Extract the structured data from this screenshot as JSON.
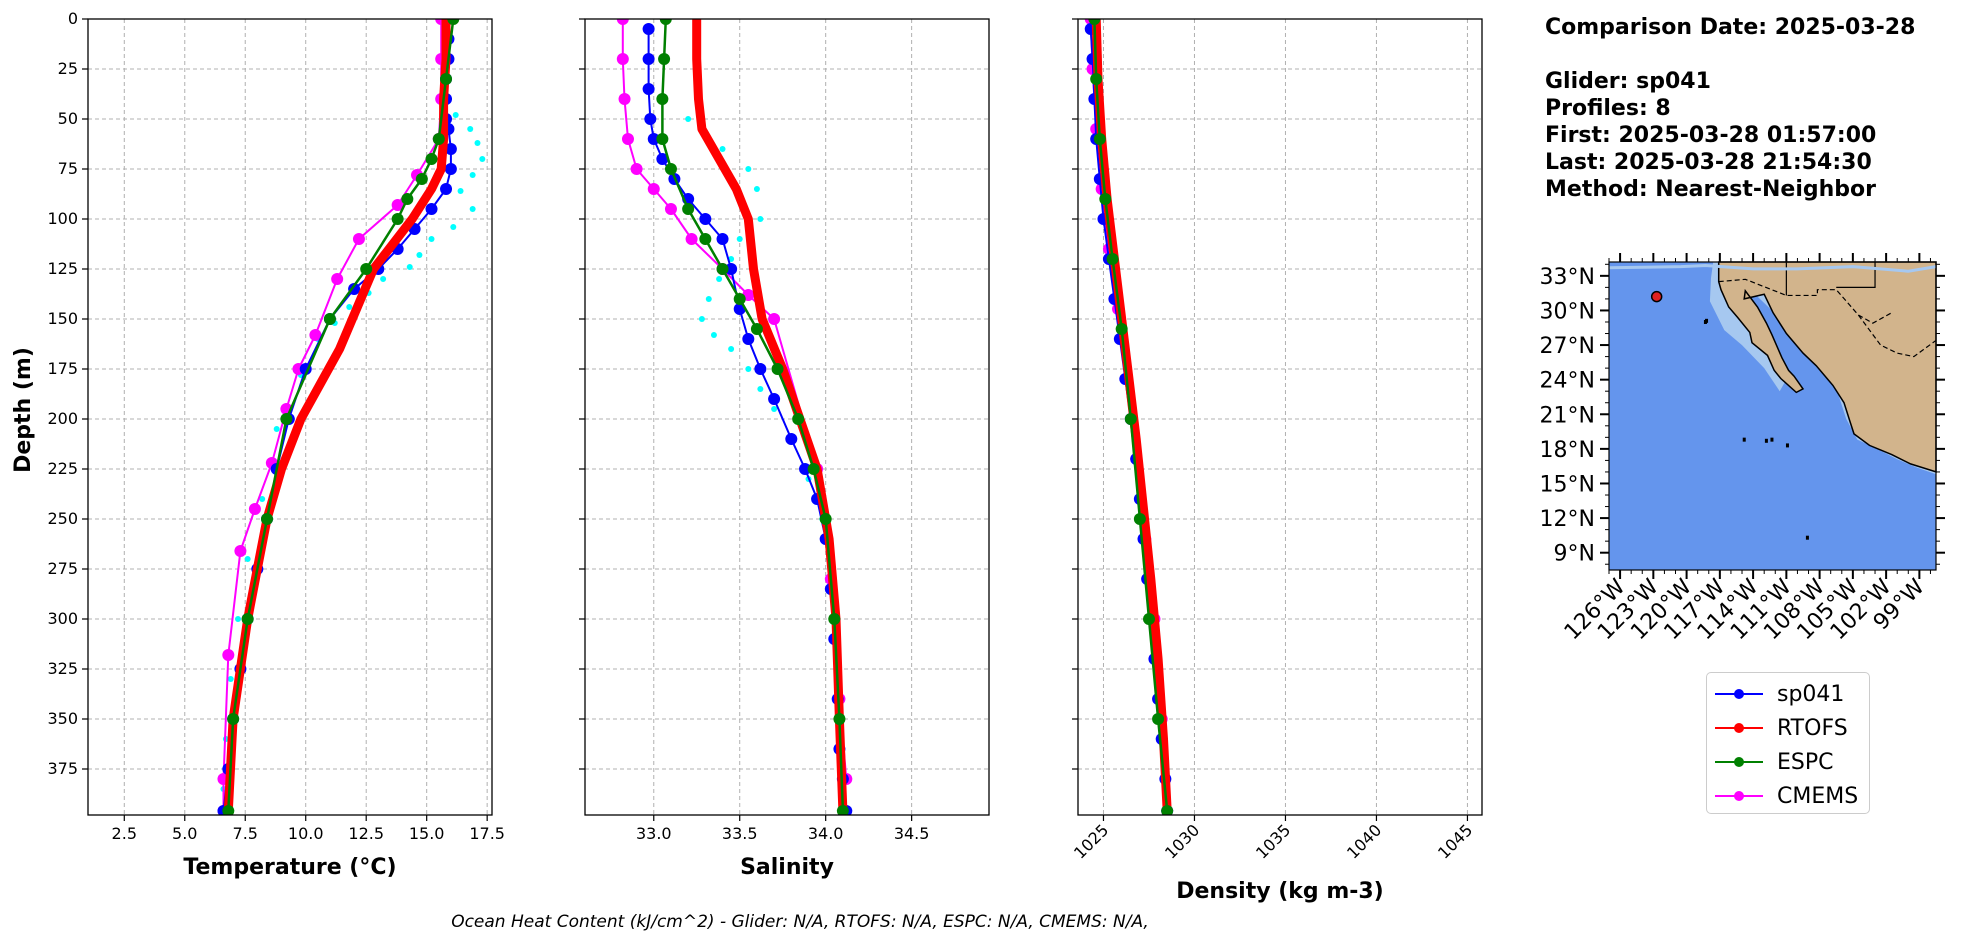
{
  "colors": {
    "glider": "#0000ff",
    "rtofs": "#ff0000",
    "espc": "#008000",
    "cmems": "#ff00ff",
    "raw": "#00ffff",
    "ocean": "#6495ed",
    "land": "#d2b48c",
    "shelf": "#a6c8f0"
  },
  "info": {
    "date_line": "Comparison Date: 2025-03-28",
    "glider_line": "Glider: sp041",
    "profiles_line": "Profiles: 8",
    "first_line": "First: 2025-03-28 01:57:00",
    "last_line": "Last: 2025-03-28 21:54:30",
    "method_line": "Method: Nearest-Neighbor"
  },
  "footer": "Ocean Heat Content (kJ/cm^2) - Glider: N/A,  RTOFS: N/A,  ESPC: N/A,  CMEMS: N/A,",
  "chart_data": [
    {
      "type": "line",
      "xlabel": "Temperature (°C)",
      "ylabel": "Depth (m)",
      "xlim": [
        1.0,
        17.7
      ],
      "ylim": [
        398,
        0
      ],
      "xticks": [
        2.5,
        5.0,
        7.5,
        10.0,
        12.5,
        15.0,
        17.5
      ],
      "xtick_labels": [
        "2.5",
        "5.0",
        "7.5",
        "10.0",
        "12.5",
        "15.0",
        "17.5"
      ],
      "yticks": [
        0,
        25,
        50,
        75,
        100,
        125,
        150,
        175,
        200,
        225,
        250,
        275,
        300,
        325,
        350,
        375
      ],
      "grid": true,
      "series": [
        {
          "name": "sp041",
          "key": "glider",
          "x": [
            15.9,
            15.9,
            15.9,
            15.8,
            15.8,
            15.8,
            15.9,
            16.0,
            16.0,
            15.8,
            15.2,
            14.5,
            13.8,
            13.0,
            12.0,
            11.0,
            10.0,
            9.3,
            8.8,
            8.4,
            8.0,
            7.6,
            7.3,
            7.0,
            6.8,
            6.6
          ],
          "y": [
            0,
            10,
            20,
            30,
            40,
            50,
            55,
            65,
            75,
            85,
            95,
            105,
            115,
            125,
            135,
            150,
            175,
            200,
            225,
            250,
            275,
            300,
            325,
            350,
            375,
            396
          ]
        },
        {
          "name": "RTOFS",
          "key": "rtofs",
          "x": [
            15.8,
            15.8,
            15.7,
            15.7,
            15.6,
            15.2,
            14.4,
            12.8,
            11.4,
            9.8,
            9.0,
            8.4,
            8.0,
            7.6,
            7.3,
            7.0,
            6.8
          ],
          "y": [
            0,
            20,
            40,
            60,
            75,
            85,
            100,
            125,
            165,
            200,
            225,
            250,
            275,
            300,
            325,
            350,
            396
          ]
        },
        {
          "name": "ESPC",
          "key": "espc",
          "x": [
            16.1,
            15.8,
            15.5,
            15.2,
            14.8,
            14.2,
            13.8,
            12.5,
            11.0,
            9.2,
            8.4,
            7.6,
            7.0,
            6.8
          ],
          "y": [
            0,
            30,
            60,
            70,
            80,
            90,
            100,
            125,
            150,
            200,
            250,
            300,
            350,
            396
          ]
        },
        {
          "name": "CMEMS",
          "key": "cmems",
          "x": [
            15.6,
            15.6,
            15.6,
            15.5,
            14.6,
            13.8,
            12.2,
            11.3,
            10.4,
            9.7,
            9.2,
            8.6,
            7.9,
            7.3,
            6.8,
            6.6,
            6.6
          ],
          "y": [
            0,
            20,
            40,
            60,
            78,
            93,
            110,
            130,
            158,
            175,
            195,
            222,
            245,
            266,
            318,
            380,
            396
          ]
        },
        {
          "name": "",
          "key": "raw",
          "x": [
            16.2,
            16.8,
            17.1,
            17.3,
            16.9,
            16.4,
            16.9,
            16.1,
            15.2,
            14.7,
            14.3,
            13.2,
            12.6,
            11.8,
            11.2,
            10.5,
            9.8,
            8.8,
            8.2,
            7.6,
            7.2,
            6.9,
            6.7,
            6.6
          ],
          "y": [
            48,
            55,
            62,
            70,
            78,
            86,
            95,
            104,
            110,
            118,
            124,
            130,
            137,
            144,
            152,
            160,
            178,
            205,
            240,
            270,
            300,
            330,
            360,
            385
          ]
        }
      ]
    },
    {
      "type": "line",
      "xlabel": "Salinity",
      "xlim": [
        32.6,
        34.95
      ],
      "ylim": [
        398,
        0
      ],
      "xticks": [
        33.0,
        33.5,
        34.0,
        34.5
      ],
      "xtick_labels": [
        "33.0",
        "33.5",
        "34.0",
        "34.5"
      ],
      "grid": true,
      "series": [
        {
          "key": "glider",
          "x": [
            32.97,
            32.97,
            32.97,
            32.98,
            33.0,
            33.05,
            33.12,
            33.2,
            33.3,
            33.4,
            33.45,
            33.5,
            33.55,
            33.62,
            33.7,
            33.8,
            33.88,
            33.95,
            34.0,
            34.03,
            34.05,
            34.07,
            34.08,
            34.1,
            34.12
          ],
          "y": [
            5,
            20,
            35,
            50,
            60,
            70,
            80,
            90,
            100,
            110,
            125,
            145,
            160,
            175,
            190,
            210,
            225,
            240,
            260,
            285,
            310,
            340,
            365,
            380,
            396
          ]
        },
        {
          "key": "rtofs",
          "x": [
            33.25,
            33.25,
            33.26,
            33.28,
            33.38,
            33.48,
            33.55,
            33.58,
            33.63,
            33.75,
            33.85,
            33.95,
            34.02,
            34.06,
            34.08,
            34.1
          ],
          "y": [
            0,
            20,
            40,
            55,
            70,
            85,
            100,
            125,
            150,
            175,
            200,
            225,
            260,
            300,
            350,
            396
          ]
        },
        {
          "key": "espc",
          "x": [
            33.07,
            33.06,
            33.05,
            33.05,
            33.1,
            33.2,
            33.3,
            33.4,
            33.5,
            33.6,
            33.72,
            33.84,
            33.93,
            34.0,
            34.05,
            34.08,
            34.1
          ],
          "y": [
            0,
            20,
            40,
            60,
            75,
            95,
            110,
            125,
            140,
            155,
            175,
            200,
            225,
            250,
            300,
            350,
            396
          ]
        },
        {
          "key": "cmems",
          "x": [
            32.82,
            32.82,
            32.83,
            32.85,
            32.9,
            33.0,
            33.1,
            33.22,
            33.4,
            33.55,
            33.7,
            33.95,
            34.03,
            34.08,
            34.12
          ],
          "y": [
            0,
            20,
            40,
            60,
            75,
            85,
            95,
            110,
            125,
            138,
            150,
            225,
            280,
            340,
            380
          ]
        },
        {
          "key": "raw",
          "x": [
            33.2,
            33.3,
            33.4,
            33.55,
            33.6,
            33.62,
            33.5,
            33.45,
            33.38,
            33.32,
            33.28,
            33.35,
            33.45,
            33.55,
            33.62,
            33.7,
            33.8,
            33.9,
            33.98,
            34.02
          ],
          "y": [
            50,
            58,
            65,
            75,
            85,
            100,
            110,
            120,
            130,
            140,
            150,
            158,
            165,
            175,
            185,
            195,
            210,
            230,
            250,
            270
          ]
        }
      ]
    },
    {
      "type": "line",
      "xlabel": "Density (kg m-3)",
      "xlim": [
        1023.6,
        1045.8
      ],
      "ylim": [
        398,
        0
      ],
      "xticks": [
        1025,
        1030,
        1035,
        1040,
        1045
      ],
      "xtick_labels": [
        "1025",
        "1030",
        "1035",
        "1040",
        "1045"
      ],
      "grid": true,
      "series": [
        {
          "key": "glider",
          "x": [
            1024.3,
            1024.4,
            1024.5,
            1024.6,
            1024.8,
            1025.0,
            1025.3,
            1025.6,
            1025.9,
            1026.2,
            1026.5,
            1026.8,
            1027.0,
            1027.2,
            1027.4,
            1027.6,
            1027.8,
            1028.0,
            1028.2,
            1028.4,
            1028.5
          ],
          "y": [
            5,
            20,
            40,
            60,
            80,
            100,
            120,
            140,
            160,
            180,
            200,
            220,
            240,
            260,
            280,
            300,
            320,
            340,
            360,
            380,
            396
          ]
        },
        {
          "key": "rtofs",
          "x": [
            1024.6,
            1024.7,
            1024.9,
            1025.2,
            1025.6,
            1026.0,
            1026.4,
            1026.8,
            1027.2,
            1027.6,
            1028.0,
            1028.3,
            1028.5
          ],
          "y": [
            0,
            30,
            60,
            90,
            120,
            150,
            180,
            210,
            245,
            280,
            320,
            360,
            396
          ]
        },
        {
          "key": "espc",
          "x": [
            1024.5,
            1024.6,
            1024.8,
            1025.1,
            1025.5,
            1026.0,
            1026.5,
            1027.0,
            1027.5,
            1028.0,
            1028.5
          ],
          "y": [
            0,
            30,
            60,
            90,
            120,
            155,
            200,
            250,
            300,
            350,
            396
          ]
        },
        {
          "key": "cmems",
          "x": [
            1024.3,
            1024.4,
            1024.6,
            1024.9,
            1025.3,
            1025.8,
            1026.3,
            1026.8,
            1027.3,
            1027.8,
            1028.2,
            1028.5
          ],
          "y": [
            0,
            25,
            55,
            85,
            115,
            145,
            180,
            220,
            260,
            300,
            350,
            396
          ]
        }
      ]
    }
  ],
  "map": {
    "lat_ticks": [
      "33°N",
      "30°N",
      "27°N",
      "24°N",
      "21°N",
      "18°N",
      "15°N",
      "12°N",
      "9°N"
    ],
    "lon_ticks": [
      "126°W",
      "123°W",
      "120°W",
      "117°W",
      "114°W",
      "111°W",
      "108°W",
      "105°W",
      "102°W",
      "99°W"
    ],
    "glider_location": {
      "lon": -122.7,
      "lat": 31.2
    }
  },
  "legend": [
    {
      "label": "sp041",
      "key": "glider"
    },
    {
      "label": "RTOFS",
      "key": "rtofs"
    },
    {
      "label": "ESPC",
      "key": "espc"
    },
    {
      "label": "CMEMS",
      "key": "cmems"
    }
  ]
}
